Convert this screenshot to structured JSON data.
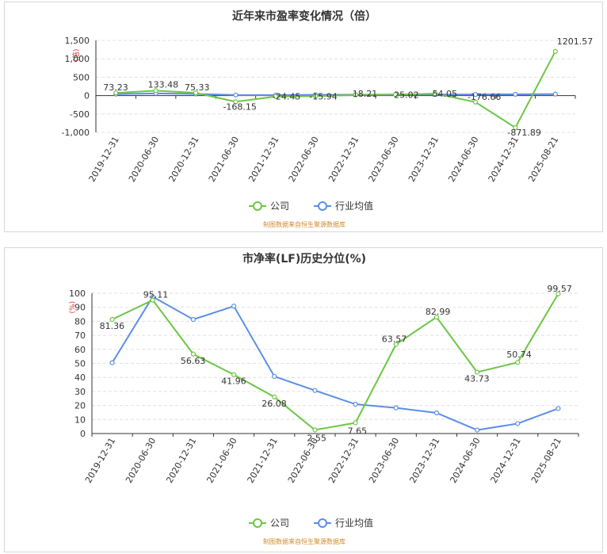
{
  "chart_data": [
    {
      "type": "line",
      "title": "近年来市盈率变化情况（倍）",
      "unit_label": "(倍)",
      "categories": [
        "2019-12-31",
        "2020-06-30",
        "2020-12-31",
        "2021-06-30",
        "2021-12-31",
        "2022-06-30",
        "2022-12-31",
        "2023-06-30",
        "2023-12-31",
        "2024-06-30",
        "2024-12-31",
        "2025-08-21"
      ],
      "series": [
        {
          "name": "公司",
          "color": "#6cc644",
          "values": [
            73.23,
            133.48,
            75.33,
            -168.15,
            -24.45,
            -15.94,
            18.21,
            25.02,
            54.05,
            -176.66,
            -871.89,
            1201.57
          ],
          "labels": [
            "73.23",
            "133.48",
            "75.33",
            "-168.15",
            "-24.45",
            "-15.94",
            "18.21",
            "25.02",
            "54.05",
            "-176.66",
            "-871.89",
            "1201.57"
          ]
        },
        {
          "name": "行业均值",
          "color": "#5b8ee6",
          "values": [
            40,
            60,
            45,
            15,
            12,
            20,
            25,
            28,
            30,
            30,
            35,
            40
          ]
        }
      ],
      "yticks": [
        -1000,
        -500,
        0,
        500,
        1000,
        1500
      ],
      "ytick_labels": [
        "-1,000",
        "-500",
        "0",
        "500",
        "1,000",
        "1,500"
      ],
      "ylim": [
        -1000,
        1500
      ],
      "grid": true,
      "legend_position": "bottom-center",
      "source_text": "制图数据来自恒生聚源数据库"
    },
    {
      "type": "line",
      "title": "市净率(LF)历史分位(%)",
      "unit_label": "(%)",
      "categories": [
        "2019-12-31",
        "2020-06-30",
        "2020-12-31",
        "2021-06-30",
        "2021-12-31",
        "2022-06-30",
        "2022-12-31",
        "2023-06-30",
        "2023-12-31",
        "2024-06-30",
        "2024-12-31",
        "2025-08-21"
      ],
      "series": [
        {
          "name": "公司",
          "color": "#6cc644",
          "values": [
            81.36,
            95.11,
            56.63,
            41.96,
            26.08,
            2.55,
            7.65,
            63.57,
            82.99,
            43.73,
            50.74,
            99.57
          ],
          "labels": [
            "81.36",
            "95.11",
            "56.63",
            "41.96",
            "26.08",
            "2.55",
            "7.65",
            "63.57",
            "82.99",
            "43.73",
            "50.74",
            "99.57"
          ]
        },
        {
          "name": "行业均值",
          "color": "#5b8ee6",
          "values": [
            50.5,
            97.5,
            81.3,
            90.8,
            40.7,
            30.7,
            20.9,
            18.3,
            14.7,
            2.5,
            7.1,
            17.8
          ]
        }
      ],
      "yticks": [
        0,
        10,
        20,
        30,
        40,
        50,
        60,
        70,
        80,
        90,
        100
      ],
      "ytick_labels": [
        "0",
        "10",
        "20",
        "30",
        "40",
        "50",
        "60",
        "70",
        "80",
        "90",
        "100"
      ],
      "ylim": [
        0,
        100
      ],
      "grid": true,
      "legend_position": "bottom-center",
      "source_text": "制图数据来自恒生聚源数据库"
    }
  ]
}
